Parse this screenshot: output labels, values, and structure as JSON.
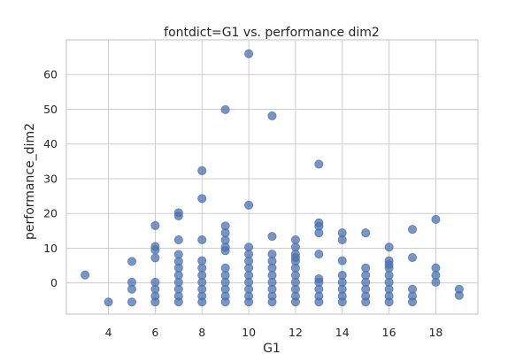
{
  "chart_data": {
    "type": "scatter",
    "title": "fontdict=G1 vs. performance dim2",
    "xlabel": "G1",
    "ylabel": "performance_dim2",
    "xlim": [
      2.2,
      19.8
    ],
    "ylim": [
      -9,
      70
    ],
    "xticks": [
      4,
      6,
      8,
      10,
      12,
      14,
      16,
      18
    ],
    "yticks": [
      0,
      10,
      20,
      30,
      40,
      50,
      60
    ],
    "grid": true,
    "legend": "none",
    "color": "#4c72b0",
    "points": [
      {
        "x": 3,
        "y": 2.3
      },
      {
        "x": 4,
        "y": -5.5
      },
      {
        "x": 5,
        "y": 6.2
      },
      {
        "x": 5,
        "y": 0.2
      },
      {
        "x": 5,
        "y": -1.8
      },
      {
        "x": 5,
        "y": -5.5
      },
      {
        "x": 6,
        "y": 16.5
      },
      {
        "x": 6,
        "y": 10.5
      },
      {
        "x": 6,
        "y": 9.5
      },
      {
        "x": 6,
        "y": 7.2
      },
      {
        "x": 6,
        "y": 0.2
      },
      {
        "x": 6,
        "y": -1.8
      },
      {
        "x": 6,
        "y": -3.8
      },
      {
        "x": 6,
        "y": -5.5
      },
      {
        "x": 7,
        "y": 20.2
      },
      {
        "x": 7,
        "y": 19.3
      },
      {
        "x": 7,
        "y": 12.4
      },
      {
        "x": 7,
        "y": 8.2
      },
      {
        "x": 7,
        "y": 6.2
      },
      {
        "x": 7,
        "y": 4.3
      },
      {
        "x": 7,
        "y": 2.2
      },
      {
        "x": 7,
        "y": 0.2
      },
      {
        "x": 7,
        "y": -1.8
      },
      {
        "x": 7,
        "y": -3.8
      },
      {
        "x": 7,
        "y": -5.5
      },
      {
        "x": 8,
        "y": 32.3
      },
      {
        "x": 8,
        "y": 24.3
      },
      {
        "x": 8,
        "y": 12.4
      },
      {
        "x": 8,
        "y": 6.4
      },
      {
        "x": 8,
        "y": 4.3
      },
      {
        "x": 8,
        "y": 2.2
      },
      {
        "x": 8,
        "y": 0.2
      },
      {
        "x": 8,
        "y": -1.8
      },
      {
        "x": 8,
        "y": -3.8
      },
      {
        "x": 8,
        "y": -5.5
      },
      {
        "x": 9,
        "y": 49.9
      },
      {
        "x": 9,
        "y": 16.4
      },
      {
        "x": 9,
        "y": 14.4
      },
      {
        "x": 9,
        "y": 12.3
      },
      {
        "x": 9,
        "y": 10.3
      },
      {
        "x": 9,
        "y": 9.3
      },
      {
        "x": 9,
        "y": 4.3
      },
      {
        "x": 9,
        "y": 2.2
      },
      {
        "x": 9,
        "y": 0.2
      },
      {
        "x": 9,
        "y": -1.8
      },
      {
        "x": 9,
        "y": -3.8
      },
      {
        "x": 9,
        "y": -5.5
      },
      {
        "x": 10,
        "y": 66.0
      },
      {
        "x": 10,
        "y": 22.4
      },
      {
        "x": 10,
        "y": 10.3
      },
      {
        "x": 10,
        "y": 8.3
      },
      {
        "x": 10,
        "y": 6.3
      },
      {
        "x": 10,
        "y": 4.3
      },
      {
        "x": 10,
        "y": 2.2
      },
      {
        "x": 10,
        "y": 0.2
      },
      {
        "x": 10,
        "y": -1.8
      },
      {
        "x": 10,
        "y": -3.8
      },
      {
        "x": 10,
        "y": -5.5
      },
      {
        "x": 11,
        "y": 48.1
      },
      {
        "x": 11,
        "y": 13.4
      },
      {
        "x": 11,
        "y": 8.3
      },
      {
        "x": 11,
        "y": 6.3
      },
      {
        "x": 11,
        "y": 4.3
      },
      {
        "x": 11,
        "y": 2.2
      },
      {
        "x": 11,
        "y": 0.2
      },
      {
        "x": 11,
        "y": -1.8
      },
      {
        "x": 11,
        "y": -3.8
      },
      {
        "x": 11,
        "y": -5.5
      },
      {
        "x": 12,
        "y": 12.4
      },
      {
        "x": 12,
        "y": 10.3
      },
      {
        "x": 12,
        "y": 8.3
      },
      {
        "x": 12,
        "y": 7.3
      },
      {
        "x": 12,
        "y": 6.3
      },
      {
        "x": 12,
        "y": 4.3
      },
      {
        "x": 12,
        "y": 2.2
      },
      {
        "x": 12,
        "y": 0.2
      },
      {
        "x": 12,
        "y": -1.8
      },
      {
        "x": 12,
        "y": -3.8
      },
      {
        "x": 12,
        "y": -5.5
      },
      {
        "x": 13,
        "y": 34.2
      },
      {
        "x": 13,
        "y": 17.3
      },
      {
        "x": 13,
        "y": 16.3
      },
      {
        "x": 13,
        "y": 14.4
      },
      {
        "x": 13,
        "y": 8.3
      },
      {
        "x": 13,
        "y": 1.2
      },
      {
        "x": 13,
        "y": 0.2
      },
      {
        "x": 13,
        "y": -1.8
      },
      {
        "x": 13,
        "y": -3.8
      },
      {
        "x": 13,
        "y": -5.5
      },
      {
        "x": 14,
        "y": 14.4
      },
      {
        "x": 14,
        "y": 12.4
      },
      {
        "x": 14,
        "y": 6.4
      },
      {
        "x": 14,
        "y": 2.2
      },
      {
        "x": 14,
        "y": 0.2
      },
      {
        "x": 14,
        "y": -1.8
      },
      {
        "x": 14,
        "y": -3.8
      },
      {
        "x": 14,
        "y": -5.5
      },
      {
        "x": 15,
        "y": 14.4
      },
      {
        "x": 15,
        "y": 4.3
      },
      {
        "x": 15,
        "y": 2.2
      },
      {
        "x": 15,
        "y": 0.2
      },
      {
        "x": 15,
        "y": -1.8
      },
      {
        "x": 15,
        "y": -3.8
      },
      {
        "x": 15,
        "y": -5.5
      },
      {
        "x": 16,
        "y": 10.3
      },
      {
        "x": 16,
        "y": 6.4
      },
      {
        "x": 16,
        "y": 5.3
      },
      {
        "x": 16,
        "y": 4.3
      },
      {
        "x": 16,
        "y": 2.2
      },
      {
        "x": 16,
        "y": 0.2
      },
      {
        "x": 16,
        "y": -1.8
      },
      {
        "x": 16,
        "y": -3.8
      },
      {
        "x": 16,
        "y": -5.5
      },
      {
        "x": 17,
        "y": 15.4
      },
      {
        "x": 17,
        "y": 7.3
      },
      {
        "x": 17,
        "y": -1.8
      },
      {
        "x": 17,
        "y": -3.8
      },
      {
        "x": 17,
        "y": -5.5
      },
      {
        "x": 18,
        "y": 18.3
      },
      {
        "x": 18,
        "y": 4.3
      },
      {
        "x": 18,
        "y": 2.2
      },
      {
        "x": 18,
        "y": 0.2
      },
      {
        "x": 19,
        "y": -1.8
      },
      {
        "x": 19,
        "y": -3.6
      }
    ]
  }
}
